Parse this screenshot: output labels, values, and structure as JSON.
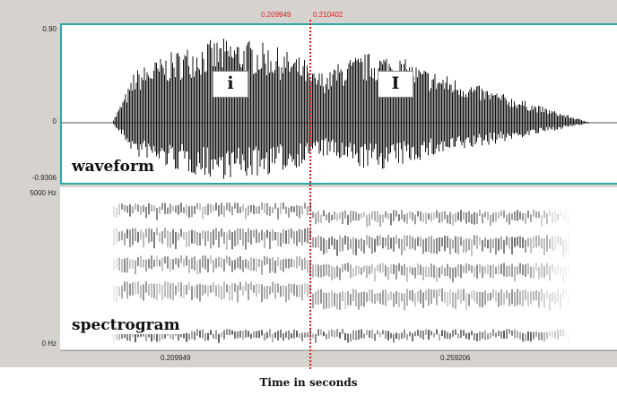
{
  "cursor": {
    "start": "0.209949",
    "end": "0.210402"
  },
  "waveform": {
    "y_max_label": "0.90",
    "y_mid_label": "0",
    "y_min_label": "-0.9306",
    "segments": [
      "i",
      "I"
    ],
    "pane_label": "waveform"
  },
  "spectrogram": {
    "y_top_label": "5000 Hz",
    "y_bottom_label": "0 Hz",
    "pane_label": "spectrogram"
  },
  "time_axis": {
    "ticks": [
      "0.209949",
      "0.259206"
    ],
    "title": "Time in seconds"
  },
  "colors": {
    "cursor": "#e02020",
    "selection_border": "#2aa9a6",
    "background": "#d6d3ce"
  }
}
